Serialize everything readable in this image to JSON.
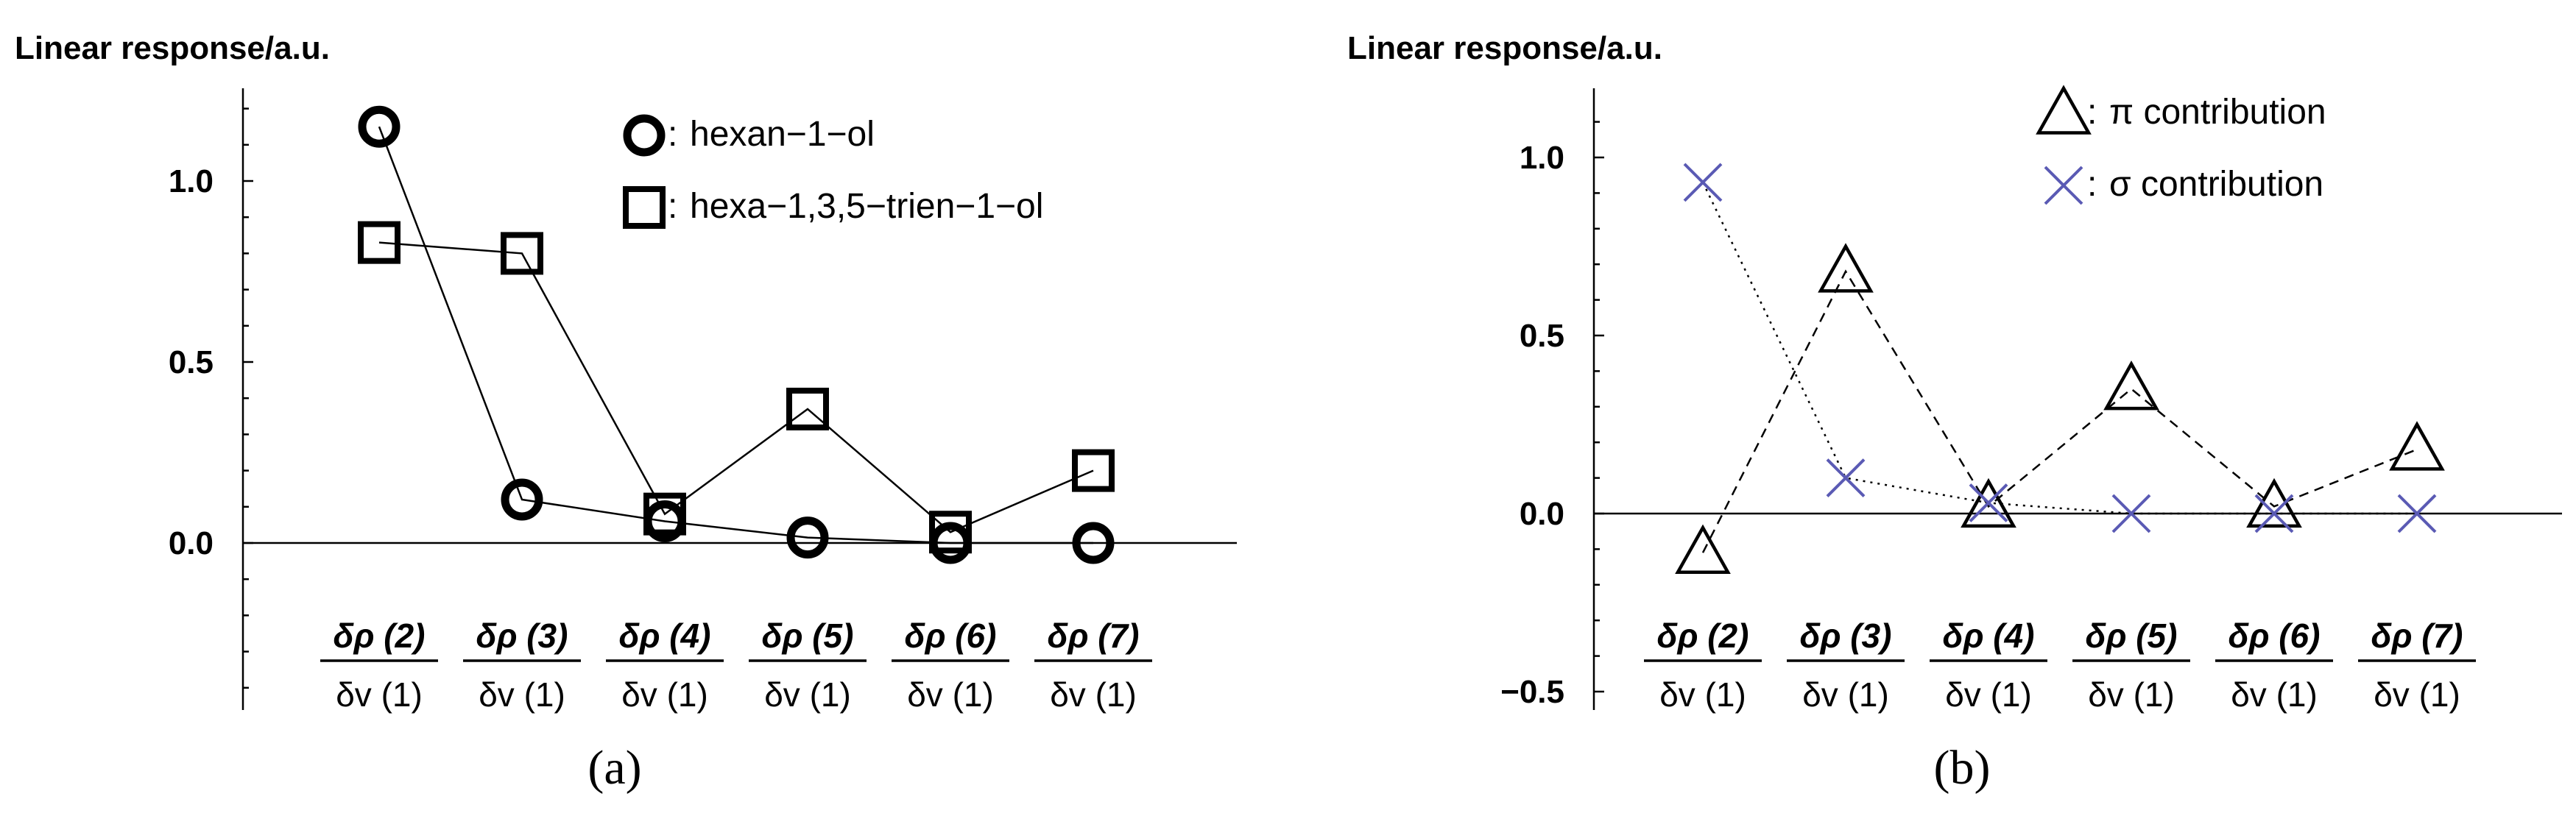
{
  "chart_data": [
    {
      "type": "line",
      "panel_label": "(a)",
      "ylabel": "Linear response/a.u.",
      "yticks": [
        0.0,
        0.5,
        1.0
      ],
      "ytick_labels": [
        "0.0",
        "0.5",
        "1.0"
      ],
      "ylim": [
        -0.45,
        1.25
      ],
      "grid": false,
      "legend_position": "top-right",
      "categories": [
        {
          "num": "δρ (2)",
          "den": "δv (1)"
        },
        {
          "num": "δρ (3)",
          "den": "δv (1)"
        },
        {
          "num": "δρ (4)",
          "den": "δv (1)"
        },
        {
          "num": "δρ (5)",
          "den": "δv (1)"
        },
        {
          "num": "δρ (6)",
          "den": "δv (1)"
        },
        {
          "num": "δρ (7)",
          "den": "δv (1)"
        }
      ],
      "series": [
        {
          "name": "hexan−1−ol",
          "legend_prefix": ": ",
          "marker": "circle",
          "line": "solid",
          "color": "#000000",
          "values": [
            1.15,
            0.12,
            0.06,
            0.015,
            0.0,
            0.0
          ]
        },
        {
          "name": "hexa−1,3,5−trien−1−ol",
          "legend_prefix": ": ",
          "marker": "square",
          "line": "solid",
          "color": "#000000",
          "values": [
            0.83,
            0.8,
            0.08,
            0.37,
            0.03,
            0.2
          ]
        }
      ]
    },
    {
      "type": "line",
      "panel_label": "(b)",
      "ylabel": "Linear response/a.u.",
      "yticks": [
        -0.5,
        0.0,
        0.5,
        1.0
      ],
      "ytick_labels": [
        "−0.5",
        "0.0",
        "0.5",
        "1.0"
      ],
      "ylim": [
        -0.55,
        1.2
      ],
      "grid": false,
      "legend_position": "top-right",
      "categories": [
        {
          "num": "δρ (2)",
          "den": "δv (1)"
        },
        {
          "num": "δρ (3)",
          "den": "δv (1)"
        },
        {
          "num": "δρ (4)",
          "den": "δv (1)"
        },
        {
          "num": "δρ (5)",
          "den": "δv (1)"
        },
        {
          "num": "δρ (6)",
          "den": "δv (1)"
        },
        {
          "num": "δρ (7)",
          "den": "δv (1)"
        }
      ],
      "series": [
        {
          "name": "π contribution",
          "legend_prefix": ": ",
          "marker": "triangle",
          "line": "dashed",
          "color": "#000000",
          "values": [
            -0.11,
            0.68,
            0.02,
            0.35,
            0.02,
            0.18
          ]
        },
        {
          "name": "σ contribution",
          "legend_prefix": ": ",
          "marker": "cross",
          "line": "dotted",
          "color": "#5a5ab4",
          "values": [
            0.93,
            0.1,
            0.03,
            0.0,
            0.0,
            0.0
          ]
        }
      ]
    }
  ]
}
